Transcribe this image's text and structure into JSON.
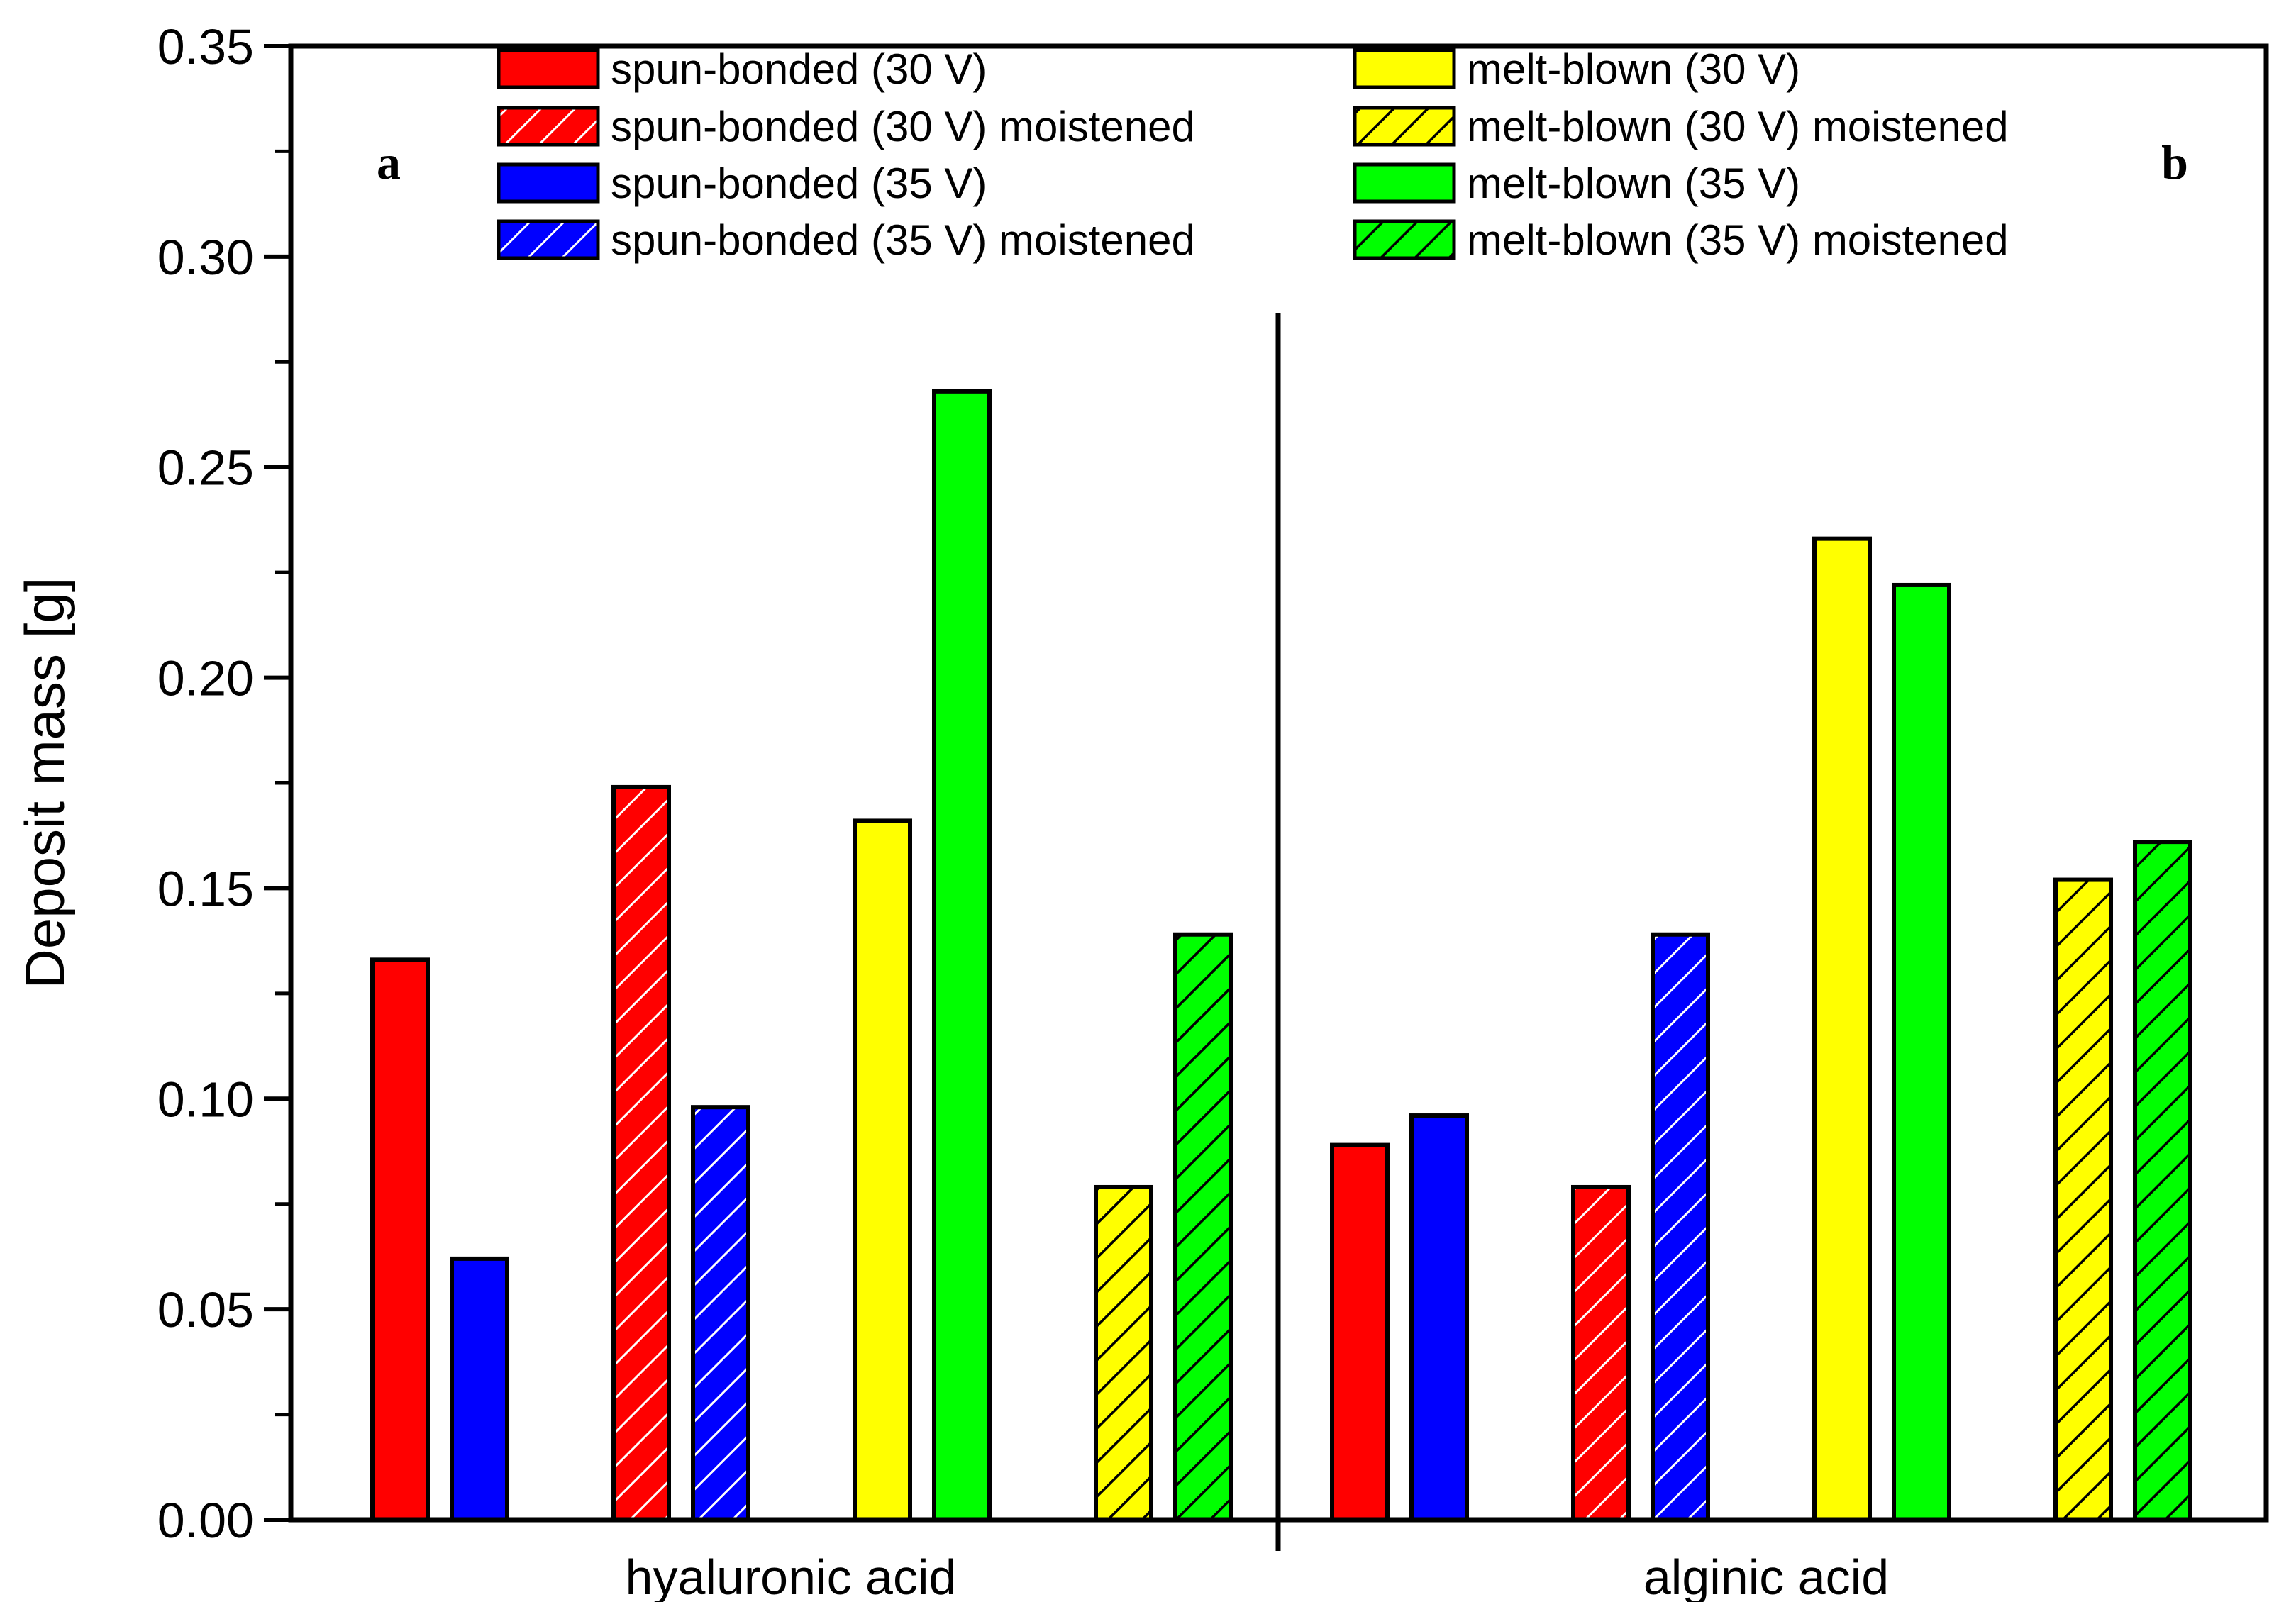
{
  "chart_data": {
    "type": "bar",
    "title": "",
    "xlabel": "",
    "ylabel": "Deposit mass [g]",
    "ylim": [
      0,
      0.35
    ],
    "yticks": [
      "0.00",
      "0.05",
      "0.10",
      "0.15",
      "0.20",
      "0.25",
      "0.30",
      "0.35"
    ],
    "grid": false,
    "legend_position": "top",
    "panel_labels": [
      "a",
      "b"
    ],
    "categories": [
      "hyaluronic acid",
      "alginic acid"
    ],
    "series": [
      {
        "name": "spun-bonded (30 V)",
        "color": "#ff0000",
        "hatched": false,
        "values": [
          0.133,
          0.089
        ]
      },
      {
        "name": "spun-bonded (35 V)",
        "color": "#0000ff",
        "hatched": false,
        "values": [
          0.062,
          0.096
        ]
      },
      {
        "name": "spun-bonded (30 V) moistened",
        "color": "#ff0000",
        "hatched": true,
        "hatch_color": "#ffffff",
        "values": [
          0.174,
          0.079
        ]
      },
      {
        "name": "spun-bonded (35 V) moistened",
        "color": "#0000ff",
        "hatched": true,
        "hatch_color": "#ffffff",
        "values": [
          0.098,
          0.139
        ]
      },
      {
        "name": "melt-blown (30 V)",
        "color": "#ffff00",
        "hatched": false,
        "values": [
          0.166,
          0.233
        ]
      },
      {
        "name": "melt-blown (35 V)",
        "color": "#00ff00",
        "hatched": false,
        "values": [
          0.268,
          0.222
        ]
      },
      {
        "name": "melt-blown (30 V) moistened",
        "color": "#ffff00",
        "hatched": true,
        "hatch_color": "#000000",
        "values": [
          0.079,
          0.152
        ]
      },
      {
        "name": "melt-blown (35 V) moistened",
        "color": "#00ff00",
        "hatched": true,
        "hatch_color": "#000000",
        "values": [
          0.139,
          0.161
        ]
      }
    ],
    "legend_order": [
      0,
      2,
      1,
      3,
      4,
      6,
      5,
      7
    ]
  }
}
